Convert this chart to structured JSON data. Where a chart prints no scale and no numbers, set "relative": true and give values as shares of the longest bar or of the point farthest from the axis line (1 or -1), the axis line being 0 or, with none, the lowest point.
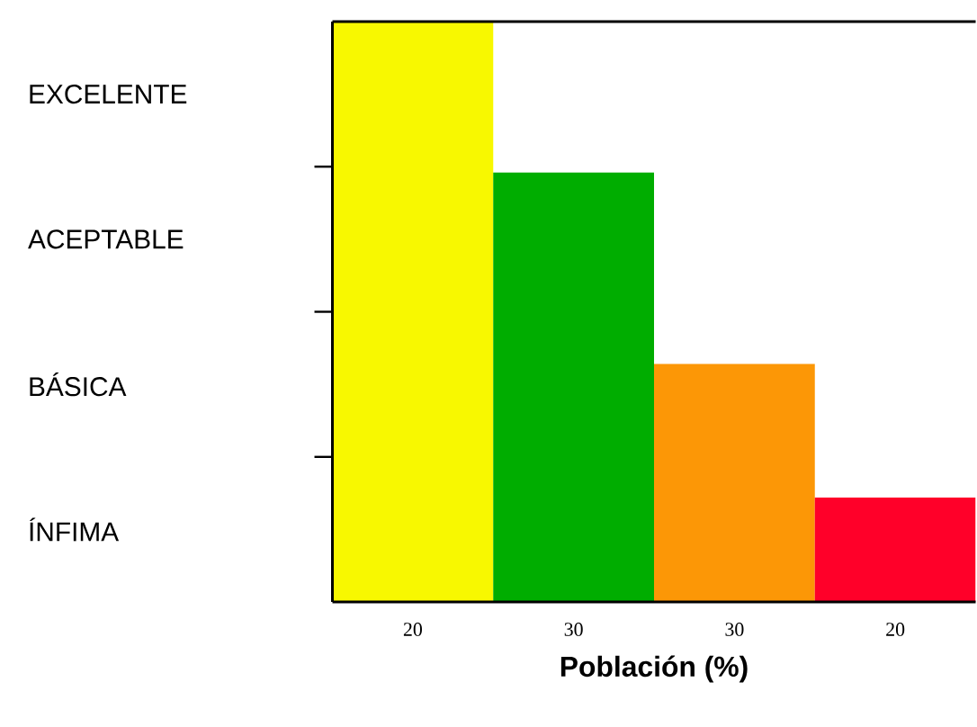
{
  "chart_data": {
    "type": "bar",
    "relative": true,
    "xlabel": "Población (%)",
    "categories": [
      "20",
      "30",
      "30",
      "20"
    ],
    "values": [
      1,
      0.74,
      0.41,
      0.18
    ],
    "colors": [
      "#f8f800",
      "#00ad00",
      "#fc9706",
      "#ff0029"
    ],
    "annotations": [
      "EXCELENTE",
      "ACEPTABLE",
      "BÁSICA",
      "ÍNFIMA"
    ]
  }
}
